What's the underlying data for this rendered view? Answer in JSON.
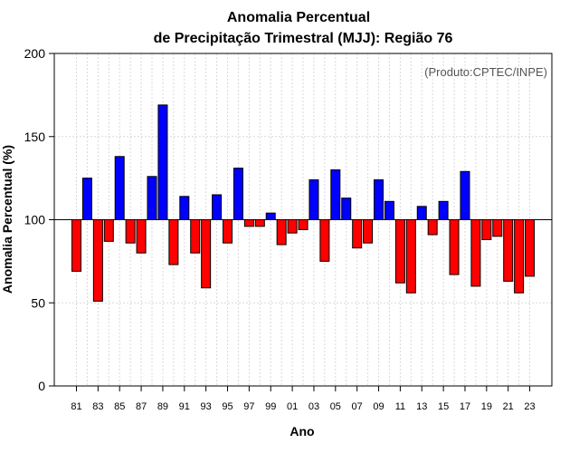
{
  "chart_data": {
    "type": "bar",
    "title_line1": "Anomalia Percentual",
    "title_line2": "de Precipitação Trimestral (MJJ): Região 76",
    "xlabel": "Ano",
    "ylabel": "Anomalia Percentual (%)",
    "annotation": "(Produto:CPTEC/INPE)",
    "ylim": [
      0,
      200
    ],
    "yticks": [
      0,
      50,
      100,
      150,
      200
    ],
    "baseline": 100,
    "grid": true,
    "colors": {
      "above": "#0000ff",
      "below": "#ff0000",
      "outline": "#000000",
      "grid": "#d9d9d9"
    },
    "categories": [
      "1981",
      "1982",
      "1983",
      "1984",
      "1985",
      "1986",
      "1987",
      "1988",
      "1989",
      "1990",
      "1991",
      "1992",
      "1993",
      "1994",
      "1995",
      "1996",
      "1997",
      "1998",
      "1999",
      "2000",
      "2001",
      "2002",
      "2003",
      "2004",
      "2005",
      "2006",
      "2007",
      "2008",
      "2009",
      "2010",
      "2011",
      "2012",
      "2013",
      "2014",
      "2015",
      "2016",
      "2017",
      "2018",
      "2019",
      "2020",
      "2021",
      "2022",
      "2023"
    ],
    "xtick_labels": [
      "81",
      "83",
      "85",
      "87",
      "89",
      "91",
      "93",
      "95",
      "97",
      "99",
      "01",
      "03",
      "05",
      "07",
      "09",
      "11",
      "13",
      "15",
      "17",
      "19",
      "21",
      "23"
    ],
    "values": [
      69,
      125,
      51,
      87,
      138,
      86,
      80,
      126,
      169,
      73,
      114,
      80,
      59,
      115,
      86,
      131,
      96,
      96,
      104,
      85,
      92,
      94,
      124,
      75,
      130,
      113,
      83,
      86,
      124,
      111,
      62,
      56,
      108,
      91,
      111,
      67,
      129,
      60,
      88,
      90,
      63,
      56,
      66
    ]
  }
}
